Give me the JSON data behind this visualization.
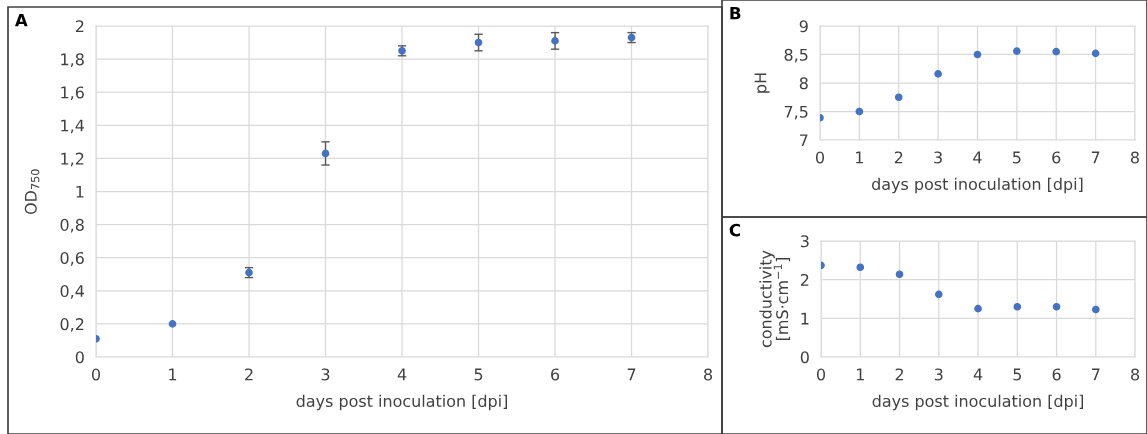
{
  "chart_data": [
    {
      "type": "scatter",
      "title": "A",
      "xlabel": "days post inoculation [dpi]",
      "ylabel": "OD$_{750}$",
      "x": [
        0,
        1,
        2,
        3,
        4,
        5,
        6,
        7
      ],
      "series": [
        {
          "color": "#4472c4",
          "values": [
            0.11,
            0.2,
            0.51,
            1.23,
            1.85,
            1.9,
            1.91,
            1.93
          ],
          "errors": [
            null,
            null,
            0.03,
            0.07,
            0.03,
            0.05,
            0.05,
            0.03
          ]
        }
      ],
      "xlim": [
        0,
        8
      ],
      "xticks": [
        0,
        1,
        2,
        3,
        4,
        5,
        6,
        7,
        8
      ],
      "ylim": [
        0,
        2
      ],
      "yticks": [
        0,
        {
          "value": 0.2,
          "label": "0,2"
        },
        {
          "value": 0.4,
          "label": "0,4"
        },
        {
          "value": 0.6,
          "label": "0,6"
        },
        {
          "value": 0.8,
          "label": "0,8"
        },
        1,
        {
          "value": 1.2,
          "label": "1,2"
        },
        {
          "value": 1.4,
          "label": "1,4"
        },
        {
          "value": 1.6,
          "label": "1,6"
        },
        {
          "value": 1.8,
          "label": "1,8"
        },
        2
      ],
      "grid": true,
      "marker": "circle"
    },
    {
      "type": "scatter",
      "title": "B",
      "xlabel": "days post inoculation [dpi]",
      "ylabel": "pH",
      "x": [
        0,
        1,
        2,
        3,
        4,
        5,
        6,
        7
      ],
      "series": [
        {
          "color": "#4472c4",
          "values": [
            7.39,
            7.5,
            7.75,
            8.16,
            8.5,
            8.56,
            8.55,
            8.52
          ]
        }
      ],
      "xlim": [
        0,
        8
      ],
      "xticks": [
        0,
        1,
        2,
        3,
        4,
        5,
        6,
        7,
        8
      ],
      "ylim": [
        7,
        9
      ],
      "yticks": [
        7,
        {
          "value": 7.5,
          "label": "7,5"
        },
        8,
        {
          "value": 8.5,
          "label": "8,5"
        },
        9
      ],
      "grid": true,
      "marker": "circle"
    },
    {
      "type": "scatter",
      "title": "C",
      "xlabel": "days post inoculation [dpi]",
      "ylabel": "conductivity\n[mS·cm$^{−1}$]",
      "x": [
        0,
        1,
        2,
        3,
        4,
        5,
        6,
        7
      ],
      "series": [
        {
          "color": "#4472c4",
          "values": [
            2.37,
            2.32,
            2.14,
            1.62,
            1.25,
            1.3,
            1.3,
            1.23
          ]
        }
      ],
      "xlim": [
        0,
        8
      ],
      "xticks": [
        0,
        1,
        2,
        3,
        4,
        5,
        6,
        7,
        8
      ],
      "ylim": [
        0,
        3
      ],
      "yticks": [
        0,
        1,
        2,
        3
      ],
      "grid": true,
      "marker": "circle"
    }
  ]
}
